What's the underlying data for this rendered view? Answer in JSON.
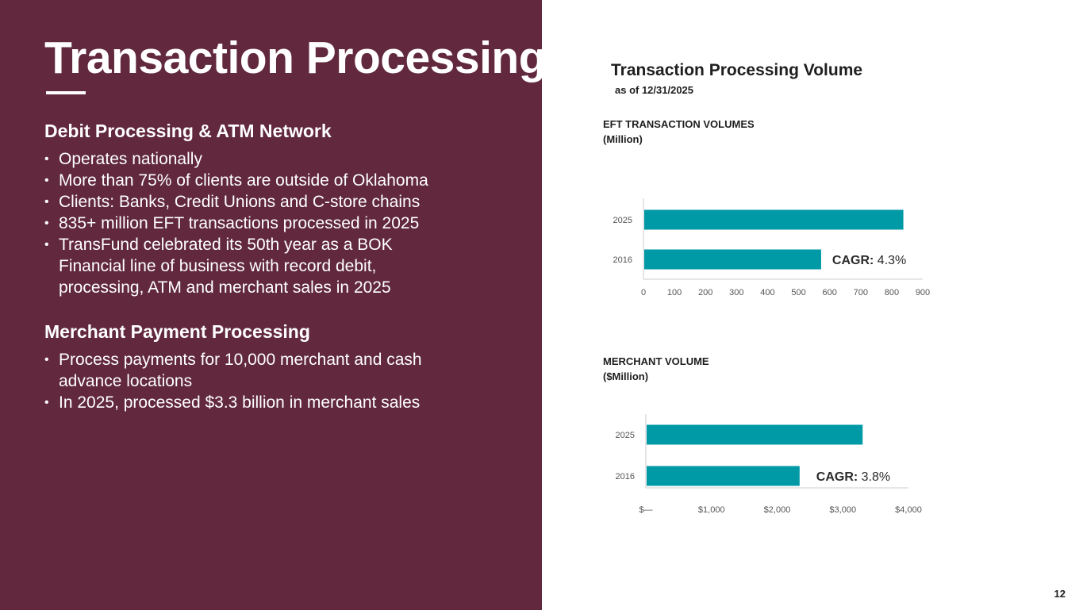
{
  "slide": {
    "title": "Transaction Processing",
    "page_number": "12"
  },
  "left": {
    "sections": [
      {
        "heading": "Debit Processing & ATM Network",
        "bullets": [
          "Operates nationally",
          "More than 75% of clients are outside of Oklahoma",
          "Clients: Banks, Credit Unions and C-store chains",
          "835+ million EFT transactions processed in 2025",
          "TransFund celebrated its 50th year as a BOK Financial line of business with record debit, processing, ATM and merchant sales in 2025"
        ]
      },
      {
        "heading": "Merchant Payment Processing",
        "bullets": [
          "Process payments for 10,000 merchant and cash advance locations",
          "In 2025, processed $3.3 billion in merchant sales"
        ]
      }
    ],
    "bullet_glyph": "•"
  },
  "right": {
    "title": "Transaction Processing Volume",
    "subtitle": "as of 12/31/2025"
  },
  "colors": {
    "panel": "#61283e",
    "bar": "#0099a6",
    "axis": "#cccccc"
  },
  "chart_data": [
    {
      "type": "bar",
      "orientation": "horizontal",
      "heading_line1": "EFT TRANSACTION VOLUMES",
      "heading_line2": "(Million)",
      "categories": [
        "2025",
        "2016"
      ],
      "values": [
        835,
        570
      ],
      "xlim": [
        0,
        900
      ],
      "xticks": [
        "0",
        "100",
        "200",
        "300",
        "400",
        "500",
        "600",
        "700",
        "800",
        "900"
      ],
      "annotation": {
        "label": "CAGR:",
        "value": "4.3%"
      }
    },
    {
      "type": "bar",
      "orientation": "horizontal",
      "heading_line1": "MERCHANT VOLUME",
      "heading_line2": "($Million)",
      "categories": [
        "2025",
        "2016"
      ],
      "values": [
        3290,
        2330
      ],
      "xlim": [
        0,
        4000
      ],
      "xticks": [
        "$—",
        "$1,000",
        "$2,000",
        "$3,000",
        "$4,000"
      ],
      "annotation": {
        "label": "CAGR:",
        "value": "3.8%"
      }
    }
  ]
}
